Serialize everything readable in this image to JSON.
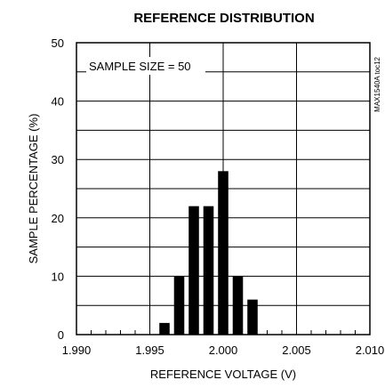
{
  "chart_data": {
    "type": "bar",
    "title": "REFERENCE DISTRIBUTION",
    "xlabel": "REFERENCE VOLTAGE (V)",
    "ylabel": "SAMPLE PERCENTAGE (%)",
    "annotation": "SAMPLE SIZE = 50",
    "watermark": "MAX1540A toc12",
    "xlim": [
      1.99,
      2.01
    ],
    "ylim": [
      0,
      50
    ],
    "x_ticks": [
      1.99,
      1.995,
      2.0,
      2.005,
      2.01
    ],
    "x_tick_labels": [
      "1.990",
      "1.995",
      "2.000",
      "2.005",
      "2.010"
    ],
    "y_ticks": [
      0,
      10,
      20,
      30,
      40,
      50
    ],
    "y_tick_labels": [
      "0",
      "10",
      "20",
      "30",
      "40",
      "50"
    ],
    "x_minor_step": 0.001,
    "grid": true,
    "bar_width": 0.0007,
    "x": [
      1.996,
      1.997,
      1.998,
      1.999,
      2.0,
      2.001,
      2.002
    ],
    "values": [
      2,
      10,
      22,
      22,
      28,
      10,
      6
    ]
  }
}
